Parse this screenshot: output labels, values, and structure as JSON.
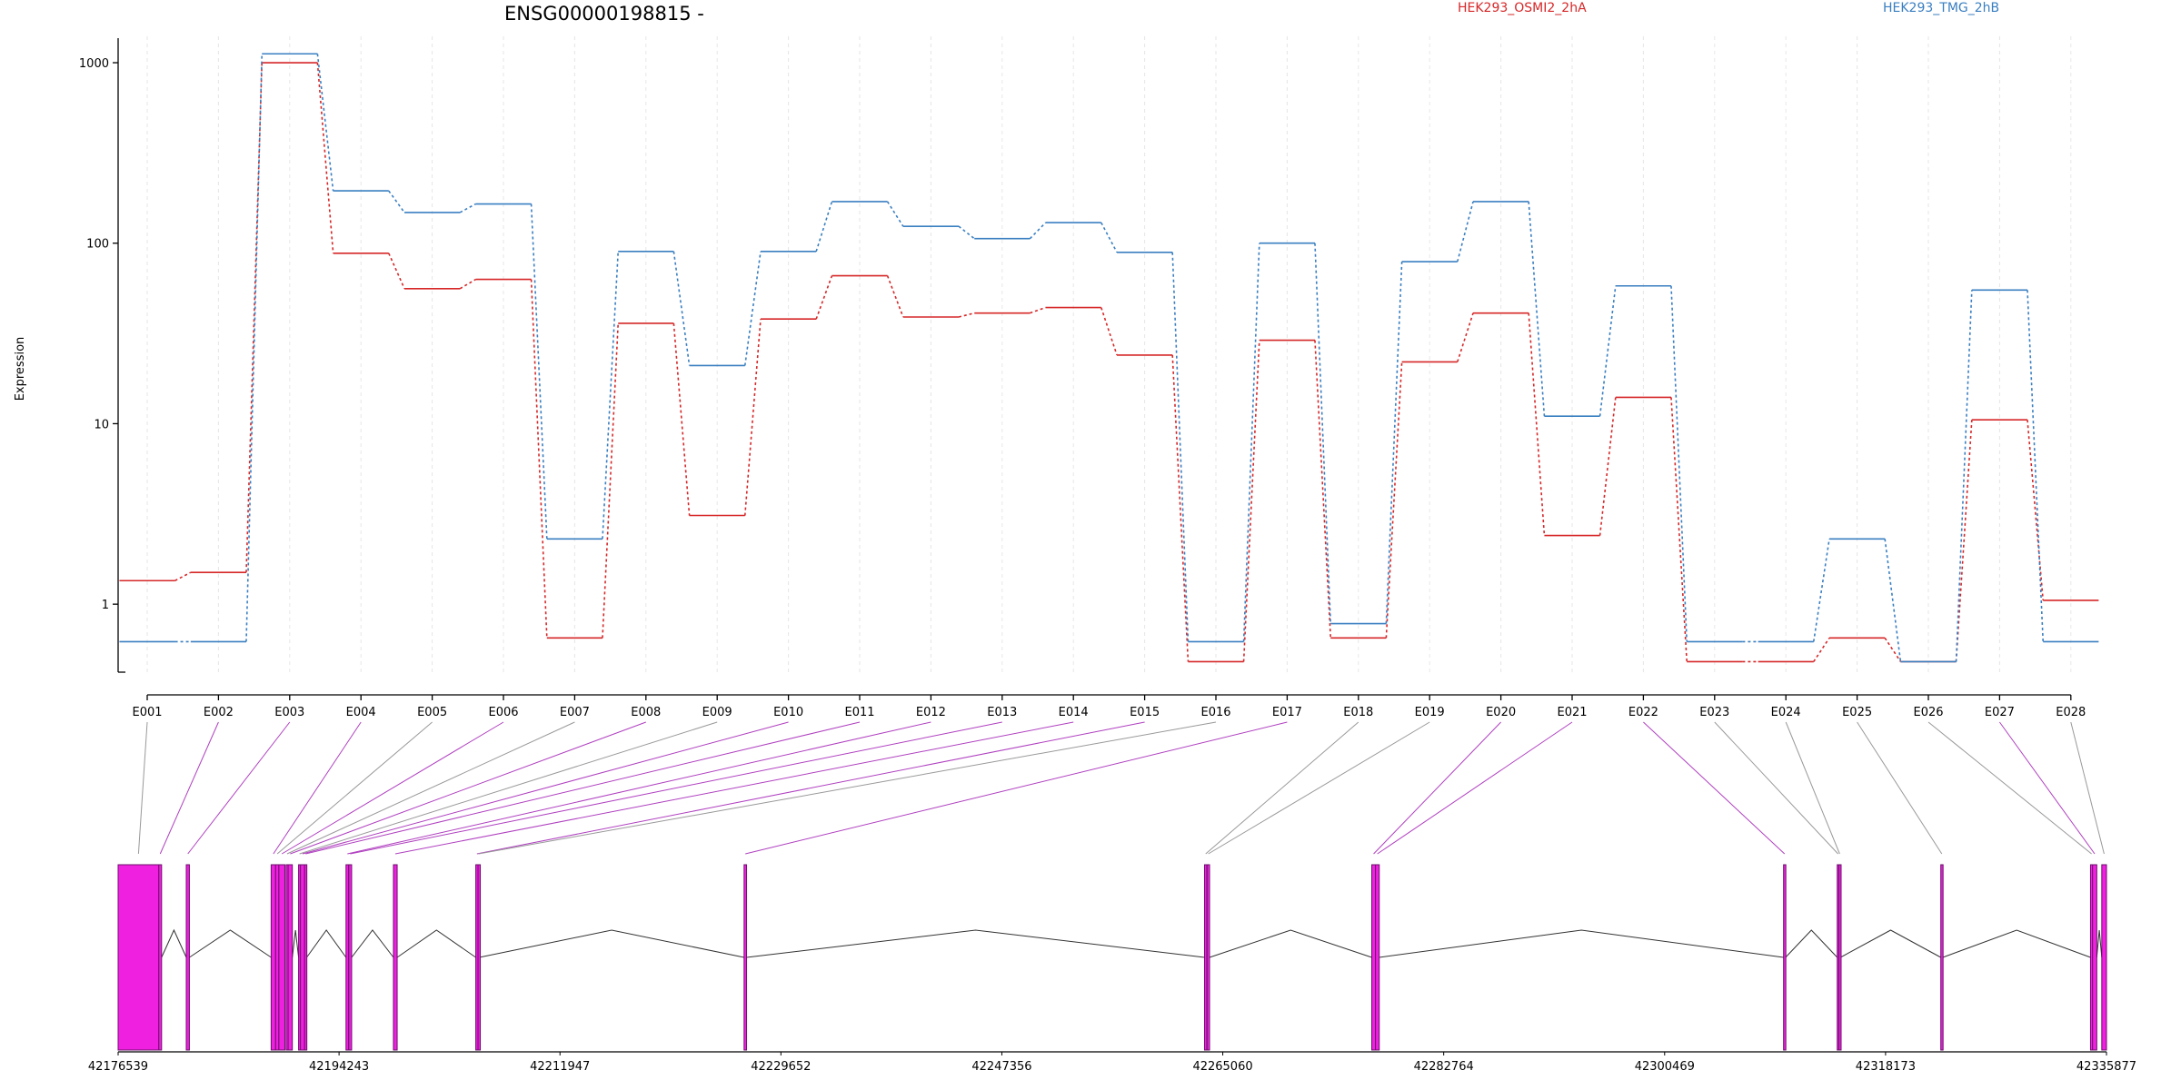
{
  "chart_data": {
    "type": "line",
    "title": "ENSG00000198815 -",
    "xlabel": "",
    "ylabel": "Expression",
    "y_scale": "log",
    "ylim": [
      0.42,
      1400
    ],
    "yticks": [
      1,
      10,
      100,
      1000
    ],
    "ytick_labels": [
      "1",
      "10",
      "100",
      "1000"
    ],
    "categories": [
      "E001",
      "E002",
      "E003",
      "E004",
      "E005",
      "E006",
      "E007",
      "E008",
      "E009",
      "E010",
      "E011",
      "E012",
      "E013",
      "E014",
      "E015",
      "E016",
      "E017",
      "E018",
      "E019",
      "E020",
      "E021",
      "E022",
      "E023",
      "E024",
      "E025",
      "E026",
      "E027",
      "E028"
    ],
    "legend_position": "top",
    "series": [
      {
        "name": "HEK293_OSMI2_2hA",
        "color": "#d62728",
        "values": [
          1.35,
          1.5,
          1000,
          88,
          56,
          63,
          0.65,
          36,
          3.1,
          38,
          66,
          39,
          41,
          44,
          24,
          0.48,
          29,
          0.65,
          22,
          41,
          2.4,
          14,
          0.48,
          0.48,
          0.65,
          0.48,
          10.5,
          1.05
        ]
      },
      {
        "name": "HEK293_TMG_2hB",
        "color": "#3a7fc1",
        "values": [
          0.62,
          0.62,
          1120,
          195,
          148,
          165,
          2.3,
          90,
          21,
          90,
          170,
          124,
          106,
          130,
          89,
          0.62,
          100,
          0.78,
          79,
          170,
          11,
          58,
          0.62,
          0.62,
          2.3,
          0.48,
          55,
          0.62
        ]
      }
    ],
    "gene_model": {
      "coordinate_ticks": [
        42176539,
        42194243,
        42211947,
        42229652,
        42247356,
        42265060,
        42282764,
        42300469,
        42318173,
        42335877
      ],
      "coordinate_range": [
        42176539,
        42335877
      ],
      "exon_fill_color": "#f020e0",
      "exon_edge_color": "#6a0f6a",
      "intron_color": "#333333",
      "connector_color_counted": "#b040c0",
      "connector_color_other": "#999999",
      "exons": [
        {
          "id": "E001",
          "start": 42176539,
          "end": 42179800,
          "counted": false
        },
        {
          "id": "E002",
          "start": 42179800,
          "end": 42180020,
          "counted": true
        },
        {
          "id": "E003",
          "start": 42182000,
          "end": 42182250,
          "counted": true
        },
        {
          "id": "E004",
          "start": 42188800,
          "end": 42189160,
          "counted": true
        },
        {
          "id": "E005",
          "start": 42189160,
          "end": 42189420,
          "counted": false
        },
        {
          "id": "E006",
          "start": 42189420,
          "end": 42189900,
          "counted": true
        },
        {
          "id": "E007",
          "start": 42190000,
          "end": 42190160,
          "counted": false
        },
        {
          "id": "E008",
          "start": 42190160,
          "end": 42190500,
          "counted": true
        },
        {
          "id": "E009",
          "start": 42191000,
          "end": 42191150,
          "counted": false
        },
        {
          "id": "E010",
          "start": 42191150,
          "end": 42191480,
          "counted": true
        },
        {
          "id": "E011",
          "start": 42191480,
          "end": 42191650,
          "counted": true
        },
        {
          "id": "E012",
          "start": 42194800,
          "end": 42195020,
          "counted": true
        },
        {
          "id": "E013",
          "start": 42195020,
          "end": 42195250,
          "counted": true
        },
        {
          "id": "E014",
          "start": 42198600,
          "end": 42198900,
          "counted": true
        },
        {
          "id": "E015",
          "start": 42205200,
          "end": 42205380,
          "counted": true
        },
        {
          "id": "E016",
          "start": 42205380,
          "end": 42205480,
          "counted": false
        },
        {
          "id": "E017",
          "start": 42226700,
          "end": 42226900,
          "counted": true
        },
        {
          "id": "E018",
          "start": 42263600,
          "end": 42263780,
          "counted": false
        },
        {
          "id": "E019",
          "start": 42263800,
          "end": 42264000,
          "counted": false
        },
        {
          "id": "E020",
          "start": 42277000,
          "end": 42277300,
          "counted": true
        },
        {
          "id": "E021",
          "start": 42277300,
          "end": 42277600,
          "counted": true
        },
        {
          "id": "E022",
          "start": 42310000,
          "end": 42310160,
          "counted": true
        },
        {
          "id": "E023",
          "start": 42314300,
          "end": 42314430,
          "counted": false
        },
        {
          "id": "E024",
          "start": 42314430,
          "end": 42314560,
          "counted": false
        },
        {
          "id": "E025",
          "start": 42322600,
          "end": 42322760,
          "counted": false
        },
        {
          "id": "E026",
          "start": 42334600,
          "end": 42334760,
          "counted": false
        },
        {
          "id": "E027",
          "start": 42334760,
          "end": 42335100,
          "counted": true
        },
        {
          "id": "E028",
          "start": 42335500,
          "end": 42335877,
          "counted": false
        }
      ]
    }
  }
}
